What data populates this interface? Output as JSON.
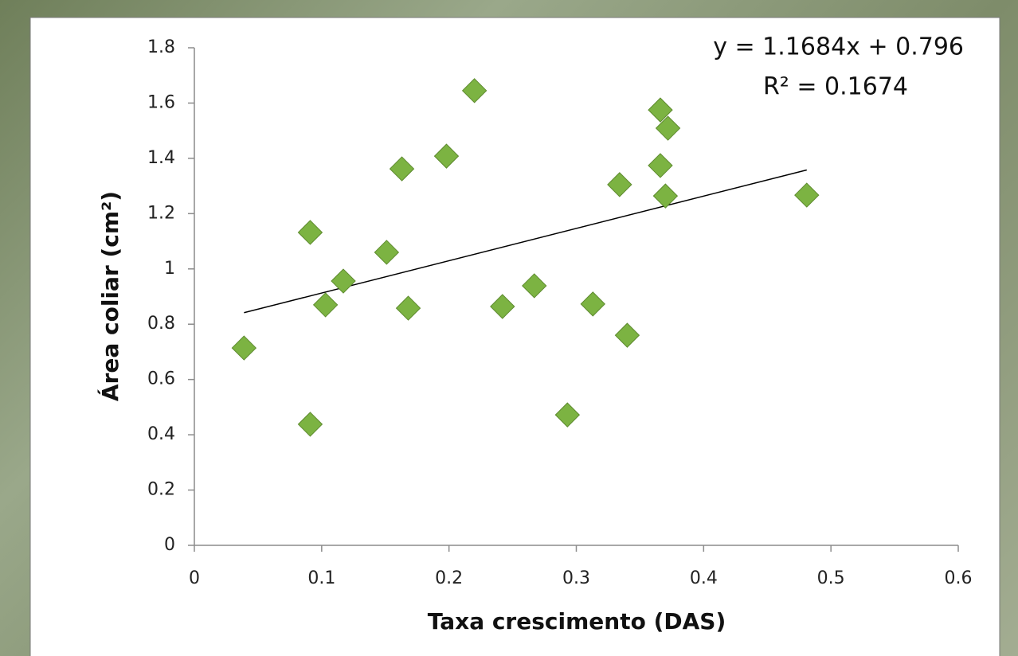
{
  "chart_data": {
    "type": "scatter",
    "x_label": "Taxa crescimento (DAS)",
    "y_label": "Área coliar (cm²)",
    "series": [
      {
        "color": "#7cb342",
        "x": [
          0.039,
          0.091,
          0.091,
          0.103,
          0.117,
          0.151,
          0.163,
          0.168,
          0.198,
          0.22,
          0.242,
          0.267,
          0.293,
          0.313,
          0.334,
          0.34,
          0.366,
          0.372,
          0.366,
          0.37,
          0.481
        ],
        "values": [
          0.714,
          1.132,
          0.438,
          0.87,
          0.956,
          1.06,
          1.362,
          0.858,
          1.408,
          1.645,
          0.864,
          0.939,
          0.472,
          0.873,
          1.305,
          0.76,
          1.575,
          1.509,
          1.374,
          1.264,
          1.267
        ]
      }
    ],
    "trendline": {
      "slope": 1.1684,
      "intercept": 0.796,
      "color": "#000000",
      "equation_label": "y = 1.1684x + 0.796",
      "r2_label": "R² = 0.1674"
    },
    "xlim": [
      0,
      0.6
    ],
    "xticks": [
      0,
      0.1,
      0.2,
      0.3,
      0.4,
      0.5,
      0.6
    ],
    "ylim": [
      0,
      1.8
    ],
    "yticks": [
      0,
      0.2,
      0.4,
      0.6,
      0.8,
      1,
      1.2,
      1.4,
      1.6,
      1.8
    ],
    "grid": false
  }
}
